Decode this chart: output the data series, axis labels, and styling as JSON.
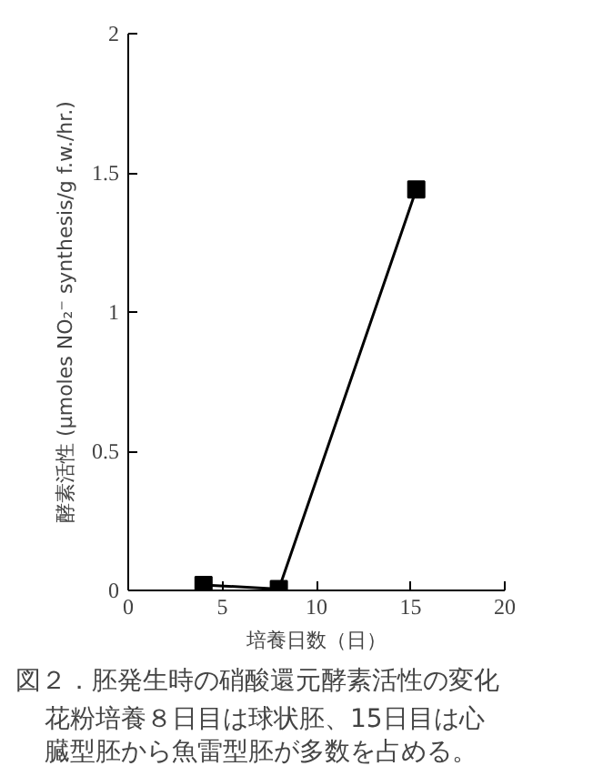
{
  "chart_data": {
    "type": "line",
    "xlabel": "培養日数（日）",
    "ylabel": "酵素活性 (μmoles NO₂⁻ synthesis/g f.w./hr.)",
    "x": [
      4,
      8,
      15.3
    ],
    "series": [
      {
        "color": "#000000",
        "values": [
          0.02,
          0.005,
          1.44
        ]
      }
    ],
    "xlim": [
      0,
      20
    ],
    "ylim": [
      0,
      2
    ],
    "xticks": [
      0,
      5,
      10,
      15,
      20
    ],
    "yticks": [
      0,
      0.5,
      1,
      1.5,
      2
    ],
    "grid": false,
    "marker": "square",
    "line_style": "solid",
    "annotations": [
      "図２．胚発生時の硝酸還元酵素活性の変化",
      "花粉培養８日目は球状胚、15日目は心",
      "臓型胚から魚雷型胚が多数を占める。"
    ]
  }
}
